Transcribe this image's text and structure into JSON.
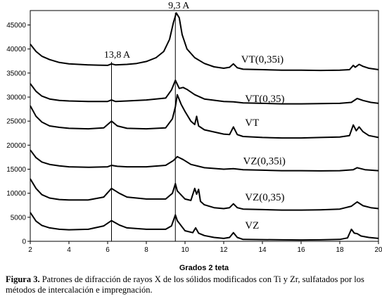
{
  "chart_data": {
    "type": "line",
    "xlabel": "Grados 2 teta",
    "ylabel": "",
    "xlim": [
      2,
      20
    ],
    "ylim": [
      0,
      48000
    ],
    "x_ticks": [
      2,
      4,
      6,
      8,
      10,
      12,
      14,
      16,
      18,
      20
    ],
    "y_ticks": [
      0,
      5000,
      10000,
      15000,
      20000,
      25000,
      30000,
      35000,
      40000,
      45000
    ],
    "grid": false,
    "annotations": [
      {
        "text": "13,8 A",
        "x": 6.2
      },
      {
        "text": "9,3 A",
        "x": 9.5
      }
    ],
    "series": [
      {
        "name": "VT(0,35i)",
        "label_at": [
          12.9,
          37200
        ],
        "points": [
          [
            2,
            41000
          ],
          [
            2.3,
            39500
          ],
          [
            2.6,
            38500
          ],
          [
            3,
            37800
          ],
          [
            3.5,
            37200
          ],
          [
            4,
            36900
          ],
          [
            5,
            36700
          ],
          [
            5.5,
            36650
          ],
          [
            6,
            36600
          ],
          [
            6.2,
            36900
          ],
          [
            6.4,
            36700
          ],
          [
            7,
            36800
          ],
          [
            7.5,
            37000
          ],
          [
            8,
            37400
          ],
          [
            8.5,
            38200
          ],
          [
            8.9,
            39500
          ],
          [
            9.2,
            42000
          ],
          [
            9.4,
            45500
          ],
          [
            9.55,
            47500
          ],
          [
            9.7,
            46500
          ],
          [
            9.85,
            43000
          ],
          [
            10.1,
            40000
          ],
          [
            10.5,
            38200
          ],
          [
            11,
            37000
          ],
          [
            11.5,
            36300
          ],
          [
            12,
            36000
          ],
          [
            12.3,
            36200
          ],
          [
            12.5,
            36900
          ],
          [
            12.7,
            36100
          ],
          [
            13,
            35800
          ],
          [
            14,
            35700
          ],
          [
            15,
            35600
          ],
          [
            16,
            35600
          ],
          [
            17,
            35550
          ],
          [
            18,
            35600
          ],
          [
            18.5,
            35700
          ],
          [
            18.7,
            36600
          ],
          [
            18.8,
            36200
          ],
          [
            19,
            36800
          ],
          [
            19.2,
            36400
          ],
          [
            19.5,
            36000
          ],
          [
            20,
            35700
          ]
        ]
      },
      {
        "name": "VT(0,35)",
        "label_at": [
          13.1,
          29000
        ],
        "points": [
          [
            2,
            32800
          ],
          [
            2.3,
            31200
          ],
          [
            2.6,
            30200
          ],
          [
            3,
            29600
          ],
          [
            3.5,
            29300
          ],
          [
            4,
            29200
          ],
          [
            5,
            29100
          ],
          [
            6,
            29100
          ],
          [
            6.2,
            29400
          ],
          [
            6.4,
            29100
          ],
          [
            7,
            29200
          ],
          [
            8,
            29400
          ],
          [
            9,
            29800
          ],
          [
            9.3,
            31500
          ],
          [
            9.5,
            33500
          ],
          [
            9.7,
            31800
          ],
          [
            9.9,
            32000
          ],
          [
            10.1,
            31600
          ],
          [
            10.5,
            30500
          ],
          [
            11,
            29600
          ],
          [
            12,
            29100
          ],
          [
            12.5,
            29000
          ],
          [
            13,
            28800
          ],
          [
            14,
            28700
          ],
          [
            15,
            28600
          ],
          [
            16,
            28600
          ],
          [
            17,
            28650
          ],
          [
            18,
            28700
          ],
          [
            18.6,
            28900
          ],
          [
            18.9,
            29700
          ],
          [
            19.2,
            29300
          ],
          [
            19.6,
            28900
          ],
          [
            20,
            28700
          ]
        ]
      },
      {
        "name": "VT",
        "label_at": [
          13.1,
          24000
        ],
        "points": [
          [
            2,
            28200
          ],
          [
            2.3,
            26000
          ],
          [
            2.6,
            24800
          ],
          [
            3,
            24000
          ],
          [
            3.5,
            23700
          ],
          [
            4,
            23500
          ],
          [
            5,
            23400
          ],
          [
            5.8,
            23600
          ],
          [
            6.2,
            25000
          ],
          [
            6.5,
            24000
          ],
          [
            7,
            23500
          ],
          [
            8,
            23400
          ],
          [
            9,
            23600
          ],
          [
            9.35,
            25500
          ],
          [
            9.5,
            28000
          ],
          [
            9.6,
            30500
          ],
          [
            9.8,
            28500
          ],
          [
            10,
            27000
          ],
          [
            10.3,
            25000
          ],
          [
            10.5,
            24300
          ],
          [
            10.6,
            26000
          ],
          [
            10.7,
            24000
          ],
          [
            11,
            23200
          ],
          [
            12,
            22300
          ],
          [
            12.3,
            22200
          ],
          [
            12.5,
            23800
          ],
          [
            12.7,
            22200
          ],
          [
            13,
            21800
          ],
          [
            14,
            21600
          ],
          [
            15,
            21500
          ],
          [
            16,
            21500
          ],
          [
            17,
            21600
          ],
          [
            18,
            21700
          ],
          [
            18.5,
            22000
          ],
          [
            18.7,
            24200
          ],
          [
            18.85,
            23000
          ],
          [
            19,
            23800
          ],
          [
            19.2,
            22800
          ],
          [
            19.5,
            22000
          ],
          [
            20,
            21600
          ]
        ]
      },
      {
        "name": "VZ(0,35i)",
        "label_at": [
          13.0,
          16000
        ],
        "points": [
          [
            2,
            19000
          ],
          [
            2.3,
            17400
          ],
          [
            2.6,
            16500
          ],
          [
            3,
            16000
          ],
          [
            3.5,
            15700
          ],
          [
            4,
            15500
          ],
          [
            5,
            15400
          ],
          [
            6,
            15500
          ],
          [
            6.2,
            15800
          ],
          [
            6.5,
            15600
          ],
          [
            7,
            15500
          ],
          [
            8,
            15500
          ],
          [
            9,
            15800
          ],
          [
            9.4,
            16800
          ],
          [
            9.6,
            17600
          ],
          [
            9.9,
            17000
          ],
          [
            10.3,
            16000
          ],
          [
            11,
            15300
          ],
          [
            12,
            15000
          ],
          [
            12.5,
            15100
          ],
          [
            13,
            14900
          ],
          [
            14,
            14800
          ],
          [
            15,
            14700
          ],
          [
            16,
            14700
          ],
          [
            17,
            14650
          ],
          [
            18,
            14700
          ],
          [
            18.7,
            14900
          ],
          [
            18.9,
            15300
          ],
          [
            19.3,
            14900
          ],
          [
            20,
            14700
          ]
        ]
      },
      {
        "name": "VZ(0,35)",
        "label_at": [
          13.1,
          8500
        ],
        "points": [
          [
            2,
            13000
          ],
          [
            2.3,
            11000
          ],
          [
            2.6,
            9700
          ],
          [
            3,
            9000
          ],
          [
            3.5,
            8700
          ],
          [
            4,
            8600
          ],
          [
            5,
            8600
          ],
          [
            5.8,
            9200
          ],
          [
            6.2,
            11000
          ],
          [
            6.6,
            10000
          ],
          [
            7,
            9200
          ],
          [
            8,
            8800
          ],
          [
            9,
            8800
          ],
          [
            9.35,
            10000
          ],
          [
            9.5,
            12000
          ],
          [
            9.6,
            10500
          ],
          [
            10,
            8800
          ],
          [
            10.3,
            8500
          ],
          [
            10.5,
            11000
          ],
          [
            10.6,
            9800
          ],
          [
            10.7,
            10800
          ],
          [
            10.8,
            8300
          ],
          [
            11,
            7600
          ],
          [
            11.5,
            7000
          ],
          [
            12,
            6800
          ],
          [
            12.3,
            7000
          ],
          [
            12.5,
            7800
          ],
          [
            12.7,
            7000
          ],
          [
            13,
            6700
          ],
          [
            14,
            6600
          ],
          [
            15,
            6500
          ],
          [
            16,
            6500
          ],
          [
            17,
            6550
          ],
          [
            18,
            6700
          ],
          [
            18.6,
            7300
          ],
          [
            18.9,
            8200
          ],
          [
            19.2,
            7400
          ],
          [
            19.6,
            7000
          ],
          [
            20,
            6800
          ]
        ]
      },
      {
        "name": "VZ",
        "label_at": [
          13.1,
          2600
        ],
        "points": [
          [
            2,
            6000
          ],
          [
            2.3,
            4200
          ],
          [
            2.6,
            3300
          ],
          [
            3,
            2800
          ],
          [
            3.5,
            2500
          ],
          [
            4,
            2400
          ],
          [
            5,
            2500
          ],
          [
            5.8,
            3200
          ],
          [
            6.2,
            4300
          ],
          [
            6.6,
            3400
          ],
          [
            7,
            2800
          ],
          [
            8,
            2500
          ],
          [
            9,
            2500
          ],
          [
            9.3,
            3200
          ],
          [
            9.5,
            5500
          ],
          [
            9.6,
            4300
          ],
          [
            10,
            2200
          ],
          [
            10.4,
            1800
          ],
          [
            10.55,
            2800
          ],
          [
            10.7,
            1700
          ],
          [
            11,
            1200
          ],
          [
            11.5,
            800
          ],
          [
            12,
            600
          ],
          [
            12.3,
            800
          ],
          [
            12.5,
            1800
          ],
          [
            12.7,
            800
          ],
          [
            13,
            400
          ],
          [
            14,
            350
          ],
          [
            15,
            300
          ],
          [
            16,
            280
          ],
          [
            17,
            300
          ],
          [
            18,
            400
          ],
          [
            18.4,
            700
          ],
          [
            18.6,
            2500
          ],
          [
            18.75,
            1700
          ],
          [
            18.9,
            1600
          ],
          [
            19.1,
            1100
          ],
          [
            19.5,
            800
          ],
          [
            20,
            600
          ]
        ]
      }
    ]
  },
  "caption": {
    "bold": "Figura 3.",
    "text": " Patrones de difracción de rayos X de los sólidos modificados con Ti y Zr, sulfatados por los métodos de intercalación e impregnación."
  }
}
